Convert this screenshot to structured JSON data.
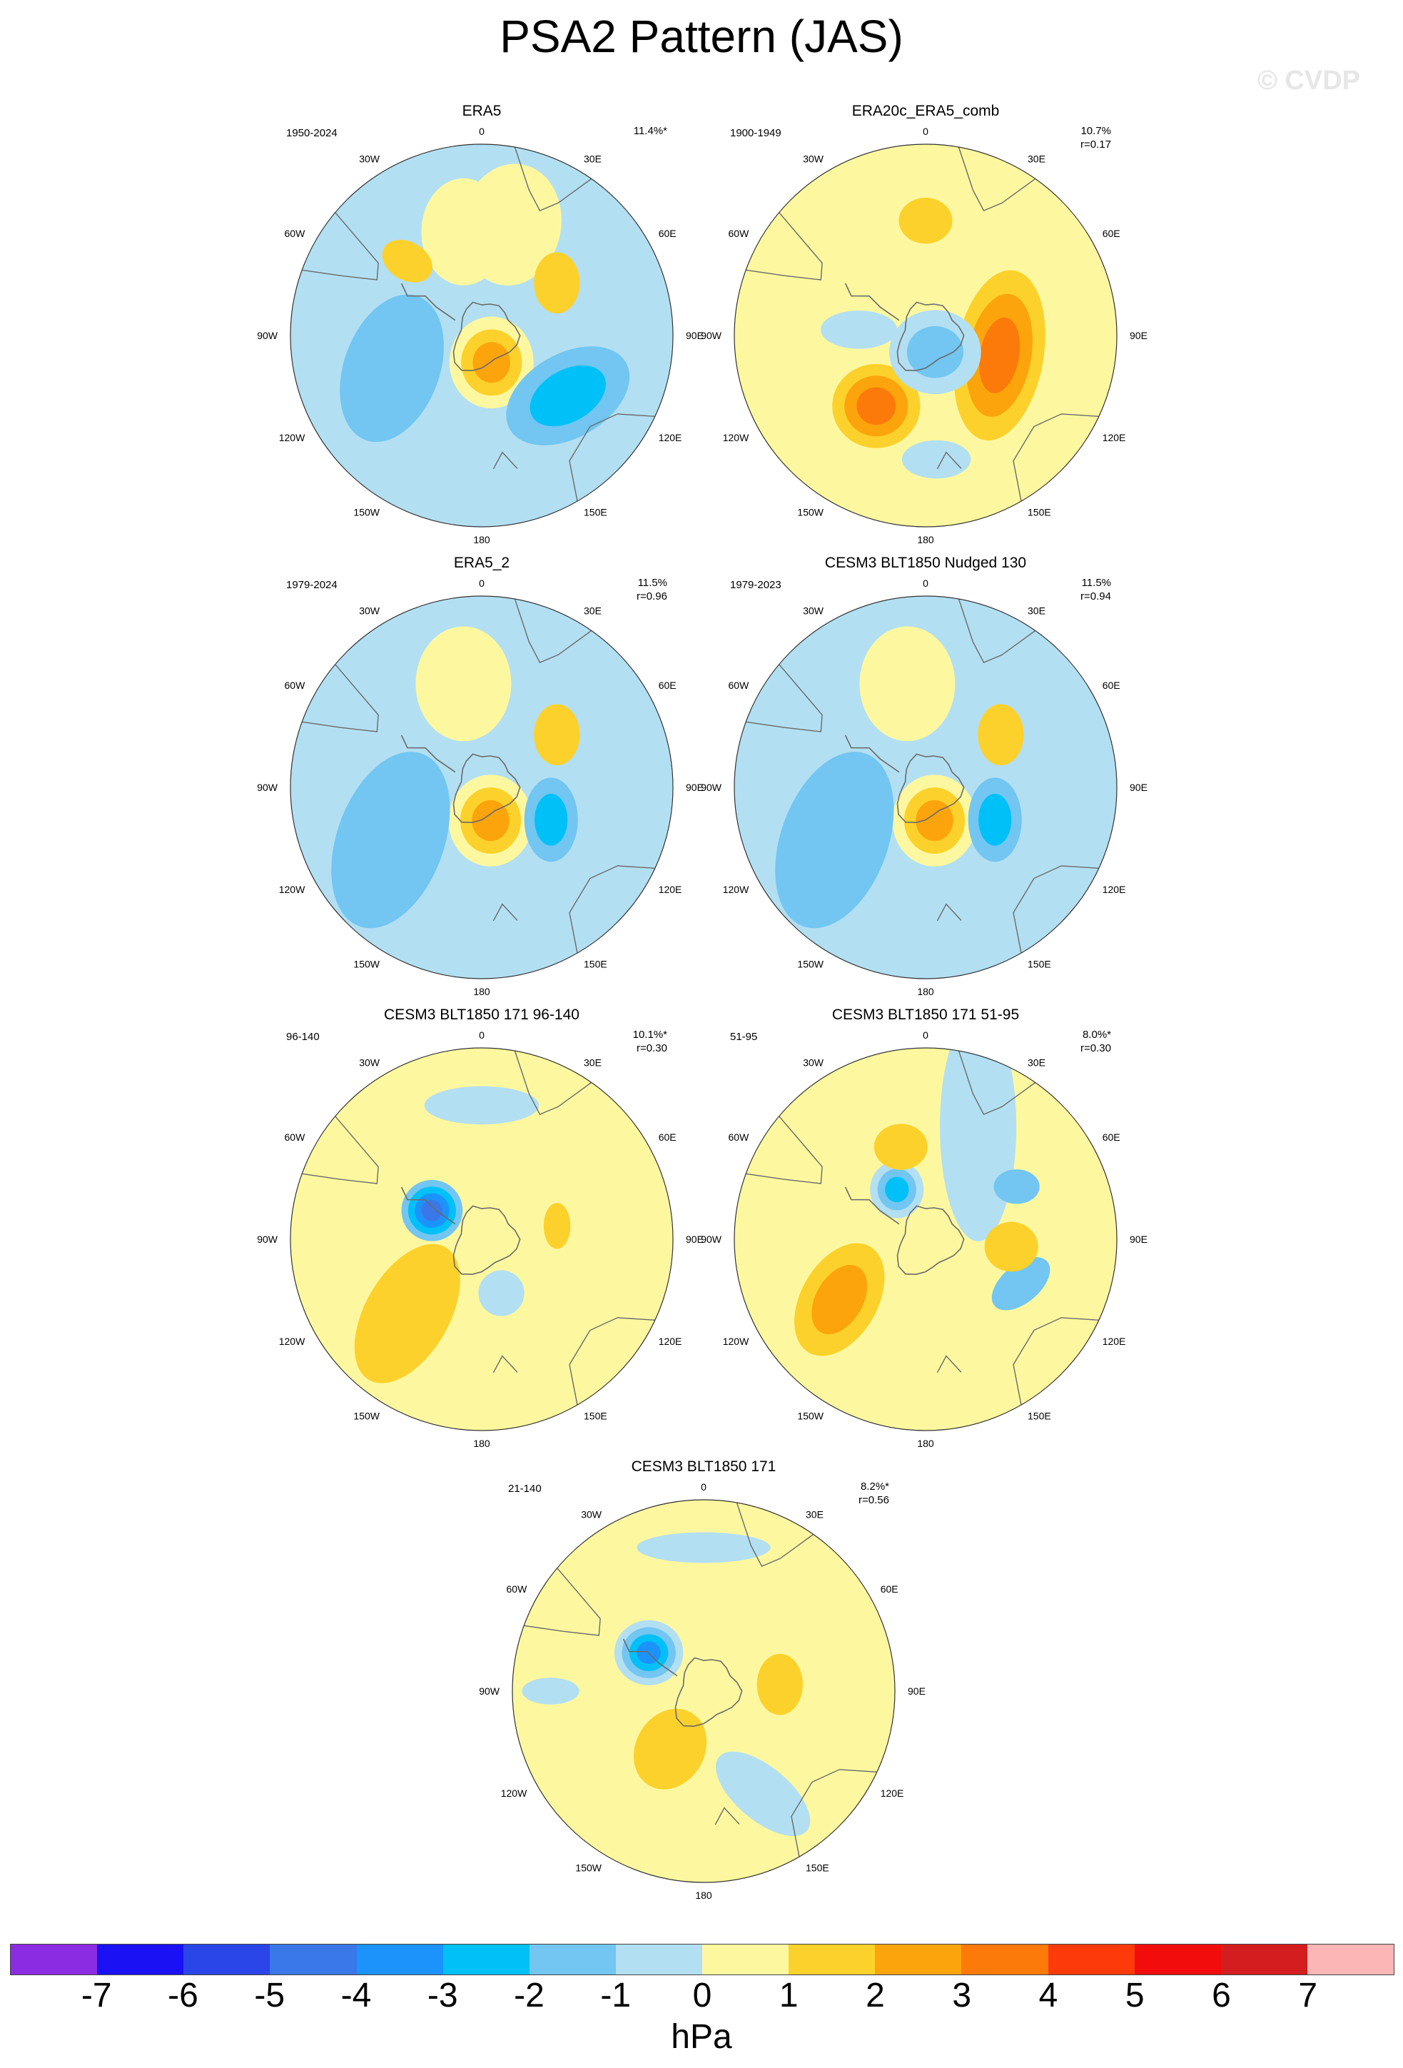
{
  "title": "PSA2 Pattern (JAS)",
  "watermark": "© CVDP",
  "units": "hPa",
  "colorbar": {
    "colors": [
      "#8b2be2",
      "#1a12f5",
      "#2a46e8",
      "#3a78ea",
      "#1c93fa",
      "#00c1f7",
      "#72c6f1",
      "#b3dff2",
      "#fdf8a0",
      "#fdd12b",
      "#fca40c",
      "#fb7a0a",
      "#fc3a0a",
      "#f30c0c",
      "#d31d1f",
      "#fcb6b6"
    ],
    "labels": [
      "-7",
      "-6",
      "-5",
      "-4",
      "-3",
      "-2",
      "-1",
      "0",
      "1",
      "2",
      "3",
      "4",
      "5",
      "6",
      "7"
    ]
  },
  "lon_labels": {
    "top": "0",
    "r1": "30E",
    "r2": "60E",
    "r3": "90E",
    "r4": "120E",
    "r5": "150E",
    "bottom": "180",
    "l5": "150W",
    "l4": "120W",
    "l3": "90W",
    "l2": "60W",
    "l1": "30W"
  },
  "panels": [
    {
      "title": "ERA5",
      "years": "1950-2024",
      "pct": "11.4%*",
      "r": "",
      "base": "#b3dff2",
      "anoms": [
        {
          "lon": 350,
          "rad": 0.55,
          "a": 0.22,
          "b": 0.28,
          "rot": 0,
          "cls": [
            8
          ]
        },
        {
          "lon": 315,
          "rad": 0.55,
          "a": 0.14,
          "b": 0.1,
          "rot": 30,
          "cls": [
            9
          ]
        },
        {
          "lon": 15,
          "rad": 0.6,
          "a": 0.26,
          "b": 0.32,
          "rot": 10,
          "cls": [
            8
          ]
        },
        {
          "lon": 55,
          "rad": 0.48,
          "a": 0.12,
          "b": 0.16,
          "rot": 0,
          "cls": [
            9
          ]
        },
        {
          "lon": 160,
          "rad": 0.15,
          "a": 0.22,
          "b": 0.24,
          "rot": 0,
          "cls": [
            8,
            9,
            10
          ]
        },
        {
          "lon": 250,
          "rad": 0.5,
          "a": 0.25,
          "b": 0.4,
          "rot": 20,
          "cls": [
            6
          ]
        },
        {
          "lon": 125,
          "rad": 0.55,
          "a": 0.22,
          "b": 0.35,
          "rot": 60,
          "cls": [
            6,
            5
          ]
        }
      ]
    },
    {
      "title": "ERA20c_ERA5_comb",
      "years": "1900-1949",
      "pct": "10.7%",
      "r": "r=0.17",
      "base": "#fdf8a0",
      "anoms": [
        {
          "lon": 0,
          "rad": 0.6,
          "a": 0.14,
          "b": 0.12,
          "rot": 0,
          "cls": [
            9
          ]
        },
        {
          "lon": 105,
          "rad": 0.4,
          "a": 0.23,
          "b": 0.45,
          "rot": 10,
          "cls": [
            9,
            10,
            11
          ]
        },
        {
          "lon": 215,
          "rad": 0.45,
          "a": 0.23,
          "b": 0.22,
          "rot": 0,
          "cls": [
            9,
            10,
            11
          ]
        },
        {
          "lon": 150,
          "rad": 0.1,
          "a": 0.24,
          "b": 0.22,
          "rot": 0,
          "cls": [
            7,
            6
          ]
        },
        {
          "lon": 275,
          "rad": 0.35,
          "a": 0.2,
          "b": 0.1,
          "rot": 0,
          "cls": [
            7
          ]
        },
        {
          "lon": 175,
          "rad": 0.65,
          "a": 0.18,
          "b": 0.1,
          "rot": 0,
          "cls": [
            7
          ]
        }
      ]
    },
    {
      "title": "ERA5_2",
      "years": "1979-2024",
      "pct": "11.5%",
      "r": "r=0.96",
      "base": "#b3dff2",
      "anoms": [
        {
          "lon": 350,
          "rad": 0.55,
          "a": 0.25,
          "b": 0.3,
          "rot": 0,
          "cls": [
            8
          ]
        },
        {
          "lon": 55,
          "rad": 0.48,
          "a": 0.12,
          "b": 0.16,
          "rot": 0,
          "cls": [
            9
          ]
        },
        {
          "lon": 165,
          "rad": 0.18,
          "a": 0.22,
          "b": 0.24,
          "rot": 0,
          "cls": [
            8,
            9,
            10
          ]
        },
        {
          "lon": 240,
          "rad": 0.55,
          "a": 0.28,
          "b": 0.48,
          "rot": 20,
          "cls": [
            6
          ]
        },
        {
          "lon": 115,
          "rad": 0.4,
          "a": 0.14,
          "b": 0.22,
          "rot": 0,
          "cls": [
            6,
            5
          ]
        }
      ]
    },
    {
      "title": "CESM3 BLT1850 Nudged 130",
      "years": "1979-2023",
      "pct": "11.5%",
      "r": "r=0.94",
      "base": "#b3dff2",
      "anoms": [
        {
          "lon": 350,
          "rad": 0.55,
          "a": 0.25,
          "b": 0.3,
          "rot": 0,
          "cls": [
            8
          ]
        },
        {
          "lon": 55,
          "rad": 0.48,
          "a": 0.12,
          "b": 0.16,
          "rot": 0,
          "cls": [
            9
          ]
        },
        {
          "lon": 165,
          "rad": 0.18,
          "a": 0.22,
          "b": 0.24,
          "rot": 0,
          "cls": [
            8,
            9,
            10
          ]
        },
        {
          "lon": 240,
          "rad": 0.55,
          "a": 0.28,
          "b": 0.48,
          "rot": 20,
          "cls": [
            6
          ]
        },
        {
          "lon": 115,
          "rad": 0.4,
          "a": 0.14,
          "b": 0.22,
          "rot": 0,
          "cls": [
            6,
            5
          ]
        }
      ]
    },
    {
      "title": "CESM3 BLT1850 171 96-140",
      "years": "96-140",
      "pct": "10.1%*",
      "r": "r=0.30",
      "base": "#fdf8a0",
      "anoms": [
        {
          "lon": 300,
          "rad": 0.3,
          "a": 0.16,
          "b": 0.16,
          "rot": 0,
          "cls": [
            6,
            5,
            4,
            3
          ]
        },
        {
          "lon": 225,
          "rad": 0.55,
          "a": 0.22,
          "b": 0.4,
          "rot": 30,
          "cls": [
            9
          ]
        },
        {
          "lon": 80,
          "rad": 0.4,
          "a": 0.07,
          "b": 0.12,
          "rot": 0,
          "cls": [
            9
          ]
        },
        {
          "lon": 0,
          "rad": 0.7,
          "a": 0.3,
          "b": 0.1,
          "rot": 0,
          "cls": [
            7
          ]
        },
        {
          "lon": 160,
          "rad": 0.3,
          "a": 0.12,
          "b": 0.12,
          "rot": 0,
          "cls": [
            7
          ]
        }
      ]
    },
    {
      "title": "CESM3 BLT1850 171 51-95",
      "years": "51-95",
      "pct": "8.0%*",
      "r": "r=0.30",
      "base": "#fdf8a0",
      "anoms": [
        {
          "lon": 330,
          "rad": 0.3,
          "a": 0.14,
          "b": 0.15,
          "rot": 0,
          "cls": [
            7,
            6,
            5
          ]
        },
        {
          "lon": 25,
          "rad": 0.65,
          "a": 0.2,
          "b": 0.6,
          "rot": 0,
          "cls": [
            7
          ]
        },
        {
          "lon": 60,
          "rad": 0.55,
          "a": 0.12,
          "b": 0.09,
          "rot": 0,
          "cls": [
            6
          ]
        },
        {
          "lon": 115,
          "rad": 0.55,
          "a": 0.1,
          "b": 0.18,
          "rot": 50,
          "cls": [
            6
          ]
        },
        {
          "lon": 95,
          "rad": 0.45,
          "a": 0.14,
          "b": 0.13,
          "rot": 0,
          "cls": [
            9
          ]
        },
        {
          "lon": 235,
          "rad": 0.55,
          "a": 0.2,
          "b": 0.32,
          "rot": 30,
          "cls": [
            9,
            10
          ]
        },
        {
          "lon": 345,
          "rad": 0.5,
          "a": 0.14,
          "b": 0.12,
          "rot": 0,
          "cls": [
            9
          ]
        }
      ]
    },
    {
      "title": "CESM3 BLT1850 171",
      "years": "21-140",
      "pct": "8.2%*",
      "r": "r=0.56",
      "base": "#fdf8a0",
      "anoms": [
        {
          "lon": 305,
          "rad": 0.35,
          "a": 0.18,
          "b": 0.17,
          "rot": 0,
          "cls": [
            7,
            6,
            5,
            4
          ]
        },
        {
          "lon": 85,
          "rad": 0.4,
          "a": 0.12,
          "b": 0.16,
          "rot": 0,
          "cls": [
            9
          ]
        },
        {
          "lon": 210,
          "rad": 0.35,
          "a": 0.18,
          "b": 0.22,
          "rot": 30,
          "cls": [
            9
          ]
        },
        {
          "lon": 0,
          "rad": 0.75,
          "a": 0.35,
          "b": 0.08,
          "rot": 0,
          "cls": [
            7
          ]
        },
        {
          "lon": 150,
          "rad": 0.62,
          "a": 0.3,
          "b": 0.14,
          "rot": 40,
          "cls": [
            7
          ]
        },
        {
          "lon": 270,
          "rad": 0.8,
          "a": 0.15,
          "b": 0.07,
          "rot": 0,
          "cls": [
            7
          ]
        }
      ]
    }
  ]
}
